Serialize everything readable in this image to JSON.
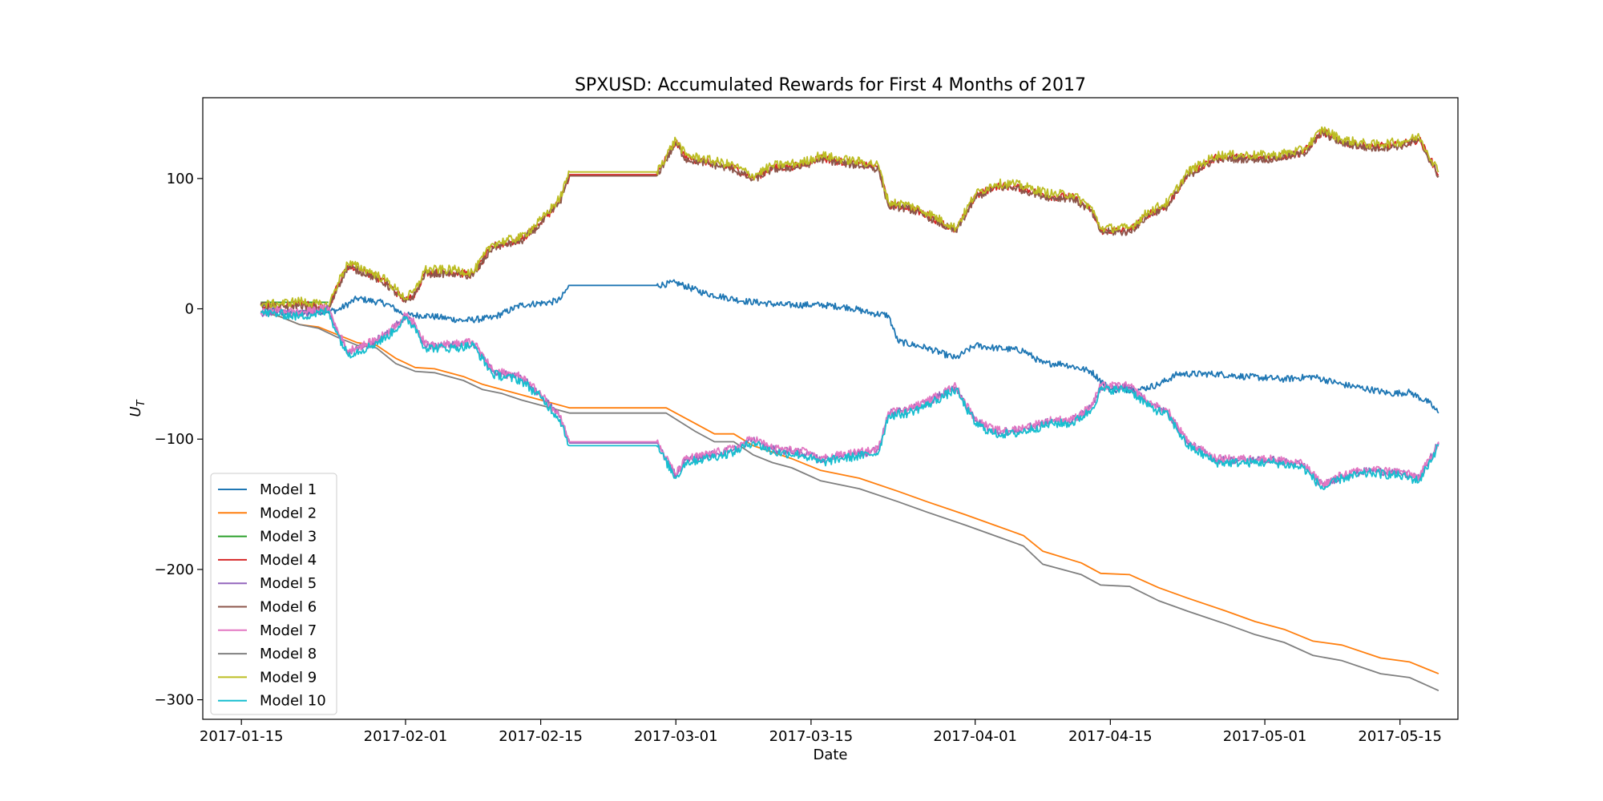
{
  "chart_data": {
    "type": "line",
    "title": "SPXUSD: Accumulated Rewards for First 4 Months of 2017",
    "xlabel": "Date",
    "ylabel": "U",
    "ylabel_subscript": "T",
    "xlim": [
      "2017-01-11",
      "2017-05-21"
    ],
    "ylim": [
      -315,
      162
    ],
    "x_ticks": [
      "2017-01-15",
      "2017-02-01",
      "2017-02-15",
      "2017-03-01",
      "2017-03-15",
      "2017-04-01",
      "2017-04-15",
      "2017-05-01",
      "2017-05-15"
    ],
    "y_ticks": [
      100,
      0,
      -100,
      -200,
      -300
    ],
    "y_tick_labels": [
      "100",
      "0",
      "−100",
      "−200",
      "−300"
    ],
    "grid": false,
    "legend_position": "lower-left",
    "series": [
      {
        "name": "Model 1",
        "color": "#1f77b4",
        "noise": 2.5,
        "points": [
          [
            "2017-01-17",
            3
          ],
          [
            "2017-01-19",
            -3
          ],
          [
            "2017-01-22",
            -3
          ],
          [
            "2017-01-25",
            -1
          ],
          [
            "2017-01-27",
            8
          ],
          [
            "2017-01-30",
            4
          ],
          [
            "2017-02-01",
            -5
          ],
          [
            "2017-02-03",
            -5
          ],
          [
            "2017-02-07",
            -9
          ],
          [
            "2017-02-10",
            -7
          ],
          [
            "2017-02-13",
            3
          ],
          [
            "2017-02-16",
            5
          ],
          [
            "2017-02-17",
            7
          ],
          [
            "2017-02-18",
            18
          ],
          [
            "2017-02-27",
            18
          ],
          [
            "2017-03-01",
            20
          ],
          [
            "2017-03-04",
            12
          ],
          [
            "2017-03-08",
            6
          ],
          [
            "2017-03-12",
            3
          ],
          [
            "2017-03-16",
            3
          ],
          [
            "2017-03-19",
            1
          ],
          [
            "2017-03-21",
            -3
          ],
          [
            "2017-03-23",
            -5
          ],
          [
            "2017-03-24",
            -25
          ],
          [
            "2017-03-27",
            -30
          ],
          [
            "2017-03-30",
            -38
          ],
          [
            "2017-04-01",
            -28
          ],
          [
            "2017-04-03",
            -30
          ],
          [
            "2017-04-06",
            -32
          ],
          [
            "2017-04-08",
            -42
          ],
          [
            "2017-04-10",
            -42
          ],
          [
            "2017-04-13",
            -48
          ],
          [
            "2017-04-15",
            -62
          ],
          [
            "2017-04-18",
            -62
          ],
          [
            "2017-04-20",
            -58
          ],
          [
            "2017-04-22",
            -50
          ],
          [
            "2017-04-26",
            -50
          ],
          [
            "2017-04-29",
            -52
          ],
          [
            "2017-05-03",
            -54
          ],
          [
            "2017-05-06",
            -52
          ],
          [
            "2017-05-09",
            -58
          ],
          [
            "2017-05-12",
            -62
          ],
          [
            "2017-05-14",
            -65
          ],
          [
            "2017-05-16",
            -64
          ],
          [
            "2017-05-18",
            -72
          ],
          [
            "2017-05-19",
            -80
          ]
        ]
      },
      {
        "name": "Model 2",
        "color": "#ff7f0e",
        "noise": 0,
        "points": [
          [
            "2017-01-17",
            -2
          ],
          [
            "2017-01-19",
            -6
          ],
          [
            "2017-01-21",
            -12
          ],
          [
            "2017-01-23",
            -14
          ],
          [
            "2017-01-25",
            -20
          ],
          [
            "2017-01-27",
            -26
          ],
          [
            "2017-01-29",
            -28
          ],
          [
            "2017-01-31",
            -38
          ],
          [
            "2017-02-02",
            -45
          ],
          [
            "2017-02-04",
            -46
          ],
          [
            "2017-02-07",
            -52
          ],
          [
            "2017-02-09",
            -58
          ],
          [
            "2017-02-11",
            -62
          ],
          [
            "2017-02-13",
            -66
          ],
          [
            "2017-02-15",
            -70
          ],
          [
            "2017-02-18",
            -76
          ],
          [
            "2017-02-28",
            -76
          ],
          [
            "2017-03-03",
            -88
          ],
          [
            "2017-03-05",
            -96
          ],
          [
            "2017-03-07",
            -96
          ],
          [
            "2017-03-09",
            -105
          ],
          [
            "2017-03-11",
            -110
          ],
          [
            "2017-03-13",
            -115
          ],
          [
            "2017-03-16",
            -124
          ],
          [
            "2017-03-20",
            -130
          ],
          [
            "2017-03-24",
            -140
          ],
          [
            "2017-03-27",
            -148
          ],
          [
            "2017-03-31",
            -158
          ],
          [
            "2017-04-03",
            -166
          ],
          [
            "2017-04-06",
            -174
          ],
          [
            "2017-04-08",
            -186
          ],
          [
            "2017-04-12",
            -195
          ],
          [
            "2017-04-14",
            -203
          ],
          [
            "2017-04-17",
            -204
          ],
          [
            "2017-04-20",
            -214
          ],
          [
            "2017-04-23",
            -222
          ],
          [
            "2017-04-27",
            -232
          ],
          [
            "2017-04-30",
            -240
          ],
          [
            "2017-05-03",
            -246
          ],
          [
            "2017-05-06",
            -255
          ],
          [
            "2017-05-09",
            -258
          ],
          [
            "2017-05-13",
            -268
          ],
          [
            "2017-05-16",
            -271
          ],
          [
            "2017-05-19",
            -280
          ]
        ]
      },
      {
        "name": "Model 3",
        "color": "#2ca02c",
        "noise": 0,
        "points": [
          [
            "2017-01-17",
            5
          ],
          [
            "2017-01-22",
            5
          ],
          [
            "2017-01-24",
            5
          ]
        ]
      },
      {
        "name": "Model 4",
        "color": "#d62728",
        "noise": 3,
        "offset_of": "Model 9",
        "offset": -2
      },
      {
        "name": "Model 5",
        "color": "#9467bd",
        "noise": 3,
        "offset_of": "Model 10",
        "offset": 2
      },
      {
        "name": "Model 6",
        "color": "#8c564b",
        "noise": 3,
        "offset_of": "Model 9",
        "offset": -3
      },
      {
        "name": "Model 7",
        "color": "#e377c2",
        "noise": 3,
        "offset_of": "Model 10",
        "offset": 3
      },
      {
        "name": "Model 8",
        "color": "#7f7f7f",
        "noise": 0,
        "points": [
          [
            "2017-01-17",
            -2
          ],
          [
            "2017-01-19",
            -6
          ],
          [
            "2017-01-21",
            -12
          ],
          [
            "2017-01-23",
            -15
          ],
          [
            "2017-01-25",
            -22
          ],
          [
            "2017-01-27",
            -28
          ],
          [
            "2017-01-29",
            -30
          ],
          [
            "2017-01-31",
            -42
          ],
          [
            "2017-02-02",
            -48
          ],
          [
            "2017-02-04",
            -49
          ],
          [
            "2017-02-07",
            -55
          ],
          [
            "2017-02-09",
            -62
          ],
          [
            "2017-02-11",
            -65
          ],
          [
            "2017-02-13",
            -70
          ],
          [
            "2017-02-15",
            -74
          ],
          [
            "2017-02-18",
            -80
          ],
          [
            "2017-02-28",
            -80
          ],
          [
            "2017-03-03",
            -94
          ],
          [
            "2017-03-05",
            -102
          ],
          [
            "2017-03-07",
            -102
          ],
          [
            "2017-03-09",
            -112
          ],
          [
            "2017-03-11",
            -118
          ],
          [
            "2017-03-13",
            -122
          ],
          [
            "2017-03-16",
            -132
          ],
          [
            "2017-03-20",
            -138
          ],
          [
            "2017-03-24",
            -148
          ],
          [
            "2017-03-27",
            -156
          ],
          [
            "2017-03-31",
            -166
          ],
          [
            "2017-04-03",
            -174
          ],
          [
            "2017-04-06",
            -182
          ],
          [
            "2017-04-08",
            -196
          ],
          [
            "2017-04-12",
            -204
          ],
          [
            "2017-04-14",
            -212
          ],
          [
            "2017-04-17",
            -213
          ],
          [
            "2017-04-20",
            -224
          ],
          [
            "2017-04-23",
            -232
          ],
          [
            "2017-04-27",
            -242
          ],
          [
            "2017-04-30",
            -250
          ],
          [
            "2017-05-03",
            -256
          ],
          [
            "2017-05-06",
            -266
          ],
          [
            "2017-05-09",
            -270
          ],
          [
            "2017-05-13",
            -280
          ],
          [
            "2017-05-16",
            -283
          ],
          [
            "2017-05-19",
            -293
          ]
        ]
      },
      {
        "name": "Model 9",
        "color": "#bcbd22",
        "noise": 3.5,
        "points": [
          [
            "2017-01-17",
            3
          ],
          [
            "2017-01-19",
            4
          ],
          [
            "2017-01-21",
            6
          ],
          [
            "2017-01-24",
            2
          ],
          [
            "2017-01-25",
            20
          ],
          [
            "2017-01-26",
            35
          ],
          [
            "2017-01-28",
            30
          ],
          [
            "2017-01-30",
            22
          ],
          [
            "2017-02-01",
            8
          ],
          [
            "2017-02-02",
            14
          ],
          [
            "2017-02-03",
            30
          ],
          [
            "2017-02-06",
            30
          ],
          [
            "2017-02-08",
            28
          ],
          [
            "2017-02-10",
            50
          ],
          [
            "2017-02-13",
            55
          ],
          [
            "2017-02-15",
            68
          ],
          [
            "2017-02-17",
            85
          ],
          [
            "2017-02-18",
            105
          ],
          [
            "2017-02-27",
            105
          ],
          [
            "2017-03-01",
            130
          ],
          [
            "2017-03-02",
            118
          ],
          [
            "2017-03-04",
            115
          ],
          [
            "2017-03-07",
            110
          ],
          [
            "2017-03-09",
            102
          ],
          [
            "2017-03-11",
            110
          ],
          [
            "2017-03-14",
            112
          ],
          [
            "2017-03-16",
            118
          ],
          [
            "2017-03-18",
            115
          ],
          [
            "2017-03-21",
            112
          ],
          [
            "2017-03-22",
            110
          ],
          [
            "2017-03-23",
            82
          ],
          [
            "2017-03-25",
            80
          ],
          [
            "2017-03-27",
            74
          ],
          [
            "2017-03-30",
            62
          ],
          [
            "2017-04-01",
            88
          ],
          [
            "2017-04-03",
            96
          ],
          [
            "2017-04-05",
            96
          ],
          [
            "2017-04-07",
            92
          ],
          [
            "2017-04-09",
            88
          ],
          [
            "2017-04-11",
            88
          ],
          [
            "2017-04-13",
            78
          ],
          [
            "2017-04-14",
            62
          ],
          [
            "2017-04-17",
            62
          ],
          [
            "2017-04-19",
            75
          ],
          [
            "2017-04-21",
            82
          ],
          [
            "2017-04-23",
            105
          ],
          [
            "2017-04-26",
            118
          ],
          [
            "2017-04-29",
            118
          ],
          [
            "2017-05-02",
            118
          ],
          [
            "2017-05-05",
            122
          ],
          [
            "2017-05-07",
            138
          ],
          [
            "2017-05-09",
            130
          ],
          [
            "2017-05-12",
            126
          ],
          [
            "2017-05-15",
            128
          ],
          [
            "2017-05-17",
            132
          ],
          [
            "2017-05-19",
            105
          ]
        ]
      },
      {
        "name": "Model 10",
        "color": "#17becf",
        "noise": 3.5,
        "points": [
          [
            "2017-01-17",
            -3
          ],
          [
            "2017-01-19",
            -4
          ],
          [
            "2017-01-21",
            -6
          ],
          [
            "2017-01-24",
            -2
          ],
          [
            "2017-01-25",
            -20
          ],
          [
            "2017-01-26",
            -35
          ],
          [
            "2017-01-28",
            -30
          ],
          [
            "2017-01-30",
            -22
          ],
          [
            "2017-02-01",
            -8
          ],
          [
            "2017-02-02",
            -14
          ],
          [
            "2017-02-03",
            -30
          ],
          [
            "2017-02-06",
            -30
          ],
          [
            "2017-02-08",
            -28
          ],
          [
            "2017-02-10",
            -50
          ],
          [
            "2017-02-13",
            -55
          ],
          [
            "2017-02-15",
            -68
          ],
          [
            "2017-02-17",
            -85
          ],
          [
            "2017-02-18",
            -105
          ],
          [
            "2017-02-27",
            -105
          ],
          [
            "2017-03-01",
            -130
          ],
          [
            "2017-03-02",
            -118
          ],
          [
            "2017-03-04",
            -115
          ],
          [
            "2017-03-07",
            -110
          ],
          [
            "2017-03-09",
            -102
          ],
          [
            "2017-03-11",
            -110
          ],
          [
            "2017-03-14",
            -112
          ],
          [
            "2017-03-16",
            -118
          ],
          [
            "2017-03-18",
            -115
          ],
          [
            "2017-03-21",
            -112
          ],
          [
            "2017-03-22",
            -110
          ],
          [
            "2017-03-23",
            -82
          ],
          [
            "2017-03-25",
            -80
          ],
          [
            "2017-03-27",
            -74
          ],
          [
            "2017-03-30",
            -62
          ],
          [
            "2017-04-01",
            -88
          ],
          [
            "2017-04-03",
            -96
          ],
          [
            "2017-04-05",
            -96
          ],
          [
            "2017-04-07",
            -92
          ],
          [
            "2017-04-09",
            -88
          ],
          [
            "2017-04-11",
            -88
          ],
          [
            "2017-04-13",
            -78
          ],
          [
            "2017-04-14",
            -62
          ],
          [
            "2017-04-17",
            -62
          ],
          [
            "2017-04-19",
            -75
          ],
          [
            "2017-04-21",
            -82
          ],
          [
            "2017-04-23",
            -105
          ],
          [
            "2017-04-26",
            -118
          ],
          [
            "2017-04-29",
            -118
          ],
          [
            "2017-05-02",
            -118
          ],
          [
            "2017-05-05",
            -122
          ],
          [
            "2017-05-07",
            -138
          ],
          [
            "2017-05-09",
            -130
          ],
          [
            "2017-05-12",
            -126
          ],
          [
            "2017-05-15",
            -128
          ],
          [
            "2017-05-17",
            -132
          ],
          [
            "2017-05-19",
            -105
          ]
        ]
      }
    ]
  }
}
